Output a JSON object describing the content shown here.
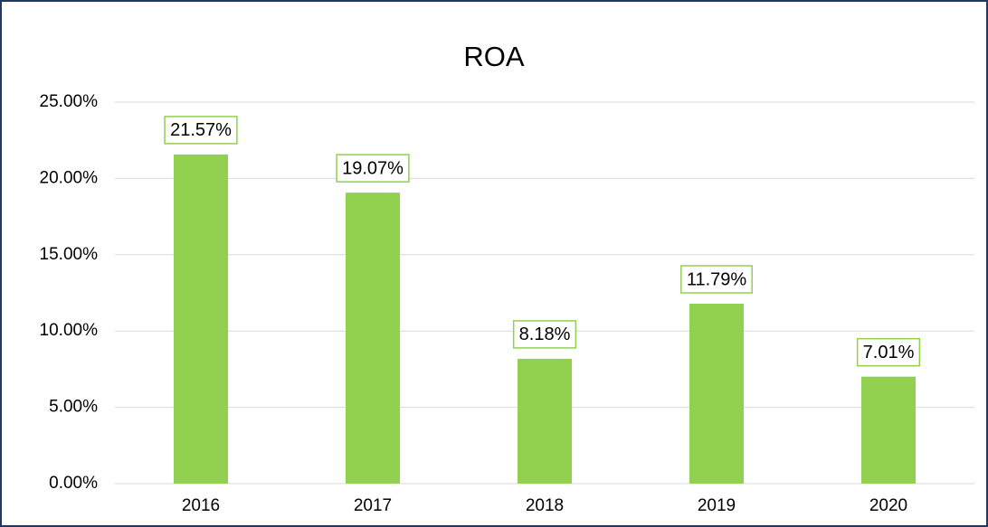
{
  "chart_data": {
    "type": "bar",
    "title": "ROA",
    "categories": [
      "2016",
      "2017",
      "2018",
      "2019",
      "2020"
    ],
    "values": [
      21.57,
      19.07,
      8.18,
      11.79,
      7.01
    ],
    "value_labels": [
      "21.57%",
      "19.07%",
      "8.18%",
      "11.79%",
      "7.01%"
    ],
    "color": "#92d050",
    "ylim": [
      0,
      25
    ],
    "yticks": [
      {
        "value": 0,
        "label": "0.00%"
      },
      {
        "value": 5,
        "label": "5.00%"
      },
      {
        "value": 10,
        "label": "10.00%"
      },
      {
        "value": 15,
        "label": "15.00%"
      },
      {
        "value": 20,
        "label": "20.00%"
      },
      {
        "value": 25,
        "label": "25.00%"
      }
    ],
    "grid": true
  }
}
